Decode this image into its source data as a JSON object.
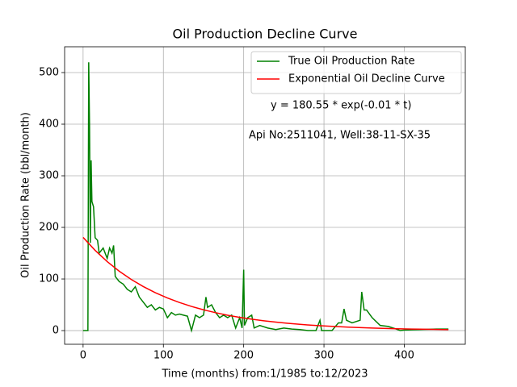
{
  "chart_data": {
    "type": "line",
    "title": "Oil Production Decline Curve",
    "xlabel": "Time (months) from:1/1985 to:12/2023",
    "ylabel": "Oil Production Rate (bbl/month)",
    "annotations": [
      "y = 180.55 * exp(-0.01 * t)",
      "Api No:2511041, Well:38-11-SX-35"
    ],
    "xlim": [
      -23,
      476
    ],
    "ylim": [
      -26.5,
      550
    ],
    "xticks": [
      0,
      100,
      200,
      300,
      400
    ],
    "yticks": [
      0,
      100,
      200,
      300,
      400,
      500
    ],
    "grid": true,
    "legend": "upper right",
    "series": [
      {
        "name": "True Oil Production Rate",
        "color": "#008000",
        "x": [
          0,
          6,
          7,
          8,
          9,
          10,
          11,
          13,
          15,
          18,
          20,
          25,
          30,
          33,
          36,
          38,
          40,
          45,
          50,
          55,
          60,
          65,
          70,
          75,
          80,
          85,
          90,
          95,
          100,
          105,
          110,
          115,
          120,
          125,
          130,
          135,
          140,
          145,
          150,
          153,
          155,
          160,
          165,
          170,
          175,
          180,
          185,
          190,
          195,
          198,
          200,
          201,
          205,
          210,
          213,
          220,
          230,
          240,
          250,
          260,
          270,
          280,
          290,
          295,
          297,
          310,
          318,
          322,
          325,
          328,
          335,
          345,
          347,
          350,
          353,
          360,
          370,
          380,
          390,
          395,
          400,
          420,
          440,
          455
        ],
        "values": [
          0,
          0,
          520,
          400,
          170,
          330,
          250,
          240,
          180,
          175,
          150,
          160,
          140,
          160,
          150,
          165,
          105,
          95,
          90,
          80,
          75,
          85,
          65,
          55,
          45,
          50,
          40,
          45,
          42,
          25,
          35,
          30,
          32,
          30,
          28,
          0,
          30,
          25,
          30,
          65,
          45,
          50,
          35,
          25,
          30,
          25,
          30,
          5,
          25,
          5,
          118,
          10,
          25,
          30,
          5,
          10,
          5,
          2,
          5,
          3,
          2,
          0,
          0,
          20,
          0,
          0,
          15,
          15,
          42,
          20,
          15,
          20,
          75,
          40,
          40,
          25,
          10,
          8,
          3,
          0,
          1,
          2,
          3,
          3
        ]
      },
      {
        "name": "Exponential Oil Decline Curve",
        "color": "#ff0000",
        "x": [
          0,
          15,
          30,
          45,
          60,
          75,
          90,
          105,
          120,
          135,
          150,
          165,
          180,
          195,
          210,
          225,
          240,
          255,
          270,
          285,
          300,
          330,
          360,
          390,
          420,
          455
        ],
        "values": [
          180.6,
          155.4,
          133.8,
          115.1,
          99.1,
          85.3,
          73.4,
          63.2,
          54.4,
          46.8,
          40.3,
          34.7,
          29.8,
          25.7,
          22.1,
          19.0,
          16.4,
          14.1,
          12.1,
          10.4,
          9.0,
          6.7,
          4.9,
          3.6,
          2.7,
          1.9
        ]
      }
    ]
  }
}
